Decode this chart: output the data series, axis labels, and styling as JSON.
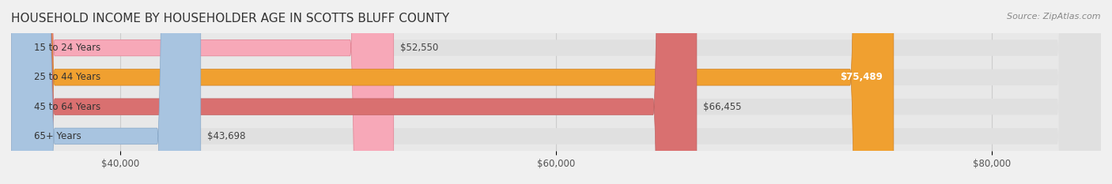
{
  "title": "HOUSEHOLD INCOME BY HOUSEHOLDER AGE IN SCOTTS BLUFF COUNTY",
  "source": "Source: ZipAtlas.com",
  "categories": [
    "15 to 24 Years",
    "25 to 44 Years",
    "45 to 64 Years",
    "65+ Years"
  ],
  "values": [
    52550,
    75489,
    66455,
    43698
  ],
  "bar_colors": [
    "#f7a8b8",
    "#f0a030",
    "#d97070",
    "#a8c4e0"
  ],
  "bar_edge_colors": [
    "#e08090",
    "#d08020",
    "#c06060",
    "#88a8c8"
  ],
  "value_labels": [
    "$52,550",
    "$75,489",
    "$66,455",
    "$43,698"
  ],
  "xmin": 35000,
  "xmax": 85000,
  "xticks": [
    40000,
    60000,
    80000
  ],
  "xtick_labels": [
    "$40,000",
    "$60,000",
    "$80,000"
  ],
  "background_color": "#f0f0f0",
  "bar_background_color": "#e8e8e8",
  "title_fontsize": 11,
  "source_fontsize": 8,
  "label_fontsize": 8.5,
  "value_fontsize": 8.5,
  "tick_fontsize": 8.5
}
